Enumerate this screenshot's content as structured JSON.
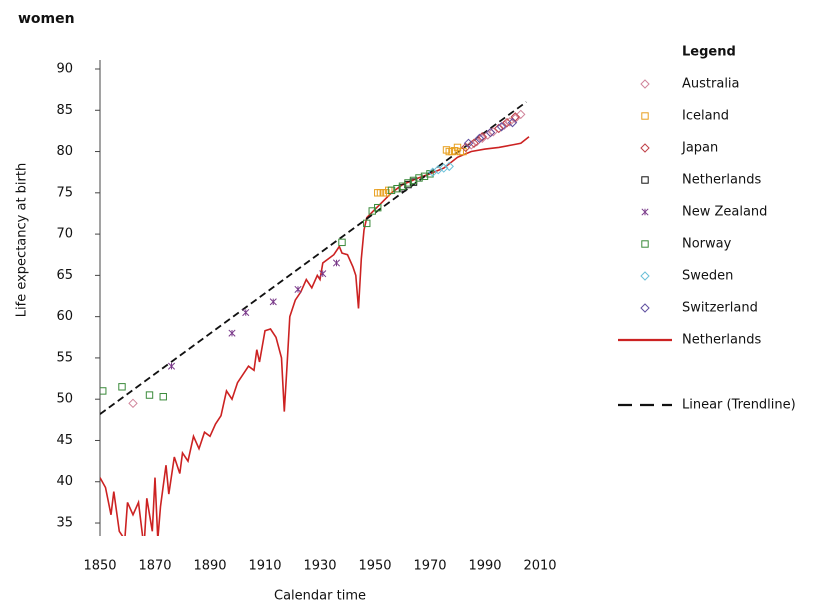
{
  "chart_data": {
    "type": "scatter",
    "title": "women",
    "xlabel": "Calendar time",
    "ylabel": "Life expectancy at birth",
    "legend_title": "Legend",
    "legend": "right",
    "xlim": [
      1850,
      2010
    ],
    "xticks": [
      1850,
      1870,
      1890,
      1910,
      1930,
      1950,
      1970,
      1990,
      2010
    ],
    "ylim": [
      33.5,
      90
    ],
    "yticks": [
      35,
      40,
      45,
      50,
      55,
      60,
      65,
      70,
      75,
      80,
      85,
      90
    ],
    "series": [
      {
        "name": "Australia",
        "color": "#d0849a",
        "marker": "diamond",
        "x": [
          1862,
          1985,
          1987,
          1989,
          1991,
          1993,
          1995,
          1997,
          1999,
          2001,
          2003
        ],
        "values": [
          49.5,
          80.8,
          81.2,
          81.6,
          82,
          82.4,
          82.8,
          83.2,
          83.6,
          84,
          84.5
        ]
      },
      {
        "name": "Iceland",
        "color": "#e8a020",
        "marker": "square",
        "x": [
          1951,
          1952,
          1953,
          1954,
          1955,
          1976,
          1977,
          1978,
          1979,
          1980,
          1981,
          1982
        ],
        "values": [
          75,
          75,
          75,
          75,
          75.3,
          80.2,
          80,
          80,
          80.1,
          80.5,
          80,
          80
        ]
      },
      {
        "name": "Japan",
        "color": "#c04048",
        "marker": "diamond",
        "x": [
          1983,
          1986,
          1989,
          1992,
          1995,
          1998,
          2001
        ],
        "values": [
          80.5,
          81,
          81.8,
          82.3,
          82.8,
          83.5,
          84.2
        ]
      },
      {
        "name": "Netherlands",
        "color": "#111111",
        "marker": "square",
        "x": [
          1960,
          1962,
          1964
        ],
        "values": [
          75.6,
          76,
          76.3
        ]
      },
      {
        "name": "New Zealand",
        "color": "#7a3a8a",
        "marker": "asterisk",
        "x": [
          1876,
          1898,
          1903,
          1913,
          1922,
          1931,
          1936
        ],
        "values": [
          54,
          58,
          60.5,
          61.8,
          63.3,
          65.2,
          66.5
        ]
      },
      {
        "name": "Norway",
        "color": "#3a8a3a",
        "marker": "square",
        "x": [
          1851,
          1858,
          1868,
          1873,
          1938,
          1947,
          1949,
          1951,
          1956,
          1958,
          1960,
          1962,
          1964,
          1966,
          1968,
          1970
        ],
        "values": [
          51,
          51.5,
          50.5,
          50.3,
          69,
          71.3,
          72.8,
          73.2,
          75.3,
          75.5,
          75.8,
          76.2,
          76.5,
          76.8,
          77,
          77.3
        ]
      },
      {
        "name": "Sweden",
        "color": "#6ac0d8",
        "marker": "diamond",
        "x": [
          1971,
          1973,
          1975,
          1977
        ],
        "values": [
          77.5,
          77.8,
          78,
          78.2
        ]
      },
      {
        "name": "Switzerland",
        "color": "#6050a0",
        "marker": "diamond",
        "x": [
          1984,
          1988,
          1992,
          1996,
          2000
        ],
        "values": [
          81,
          81.6,
          82.3,
          83,
          83.5
        ]
      },
      {
        "name": "Netherlands",
        "color": "#cc2222",
        "marker": "line",
        "x": [
          1850,
          1852,
          1854,
          1855,
          1857,
          1859,
          1860,
          1862,
          1864,
          1866,
          1867,
          1869,
          1870,
          1871,
          1872,
          1874,
          1875,
          1877,
          1879,
          1880,
          1882,
          1884,
          1886,
          1888,
          1890,
          1892,
          1894,
          1896,
          1898,
          1900,
          1902,
          1904,
          1906,
          1907,
          1908,
          1910,
          1912,
          1914,
          1916,
          1917,
          1918,
          1919,
          1921,
          1923,
          1925,
          1927,
          1929,
          1930,
          1931,
          1933,
          1935,
          1937,
          1938,
          1940,
          1942,
          1943,
          1944,
          1945,
          1946,
          1947,
          1950,
          1953,
          1956,
          1960,
          1965,
          1970,
          1975,
          1980,
          1985,
          1990,
          1995,
          2000,
          2003,
          2006
        ],
        "values": [
          40.5,
          39.3,
          36,
          38.8,
          34,
          33,
          37.5,
          36,
          37.5,
          32,
          38,
          34,
          40.5,
          33,
          37,
          42,
          38.5,
          43,
          41,
          43.5,
          42.5,
          45.5,
          44,
          46,
          45.5,
          47,
          48,
          51,
          50,
          52,
          53,
          54,
          53.5,
          56,
          54.5,
          58.3,
          58.5,
          57.5,
          55,
          48.5,
          54,
          60,
          62,
          63,
          64.5,
          63.5,
          65,
          64.5,
          66.5,
          67,
          67.5,
          68.5,
          67.7,
          67.5,
          66,
          65,
          61,
          67,
          70.5,
          72,
          73,
          74,
          75,
          76,
          76.7,
          77.3,
          78,
          79.3,
          80,
          80.3,
          80.5,
          80.8,
          81,
          81.8
        ]
      },
      {
        "name": "Linear (Trendline)",
        "color": "#111111",
        "marker": "dashed",
        "x": [
          1850,
          2005
        ],
        "values": [
          48.2,
          86
        ]
      }
    ]
  }
}
